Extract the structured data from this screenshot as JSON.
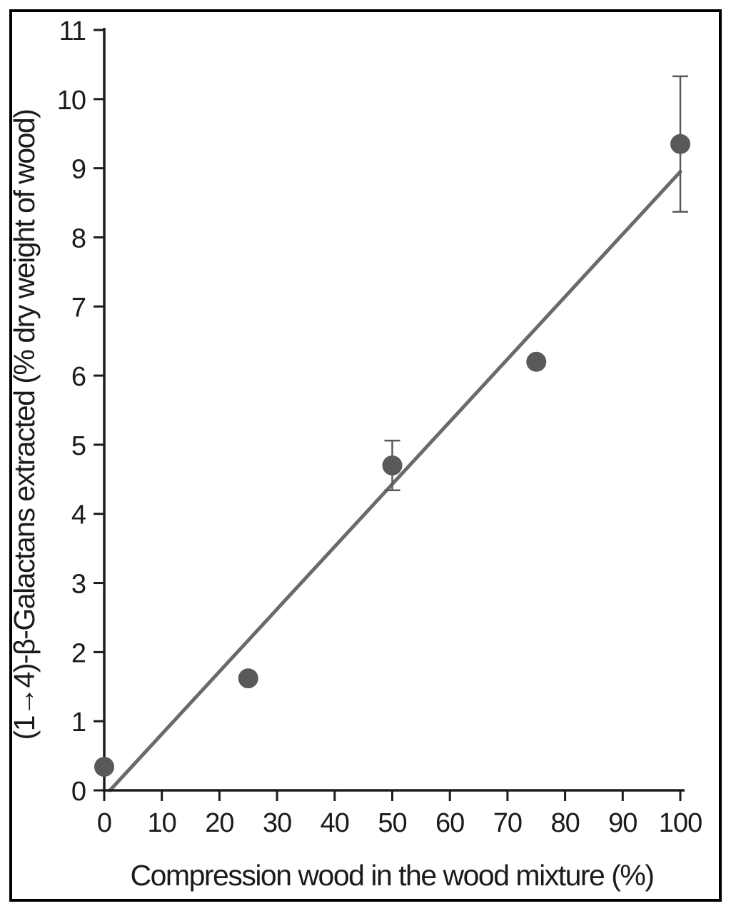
{
  "figure": {
    "background_color": "#ffffff",
    "border_color": "#000000",
    "axis_color": "#1b1b1b",
    "marker_color": "#595959",
    "trendline_color": "#6a6a6a",
    "errorbar_color": "#595959"
  },
  "chart_data": {
    "type": "scatter",
    "title": "",
    "xlabel": "Compression wood in the wood mixture (%)",
    "ylabel": "(1→4)-β-Galactans extracted (% dry weight of wood)",
    "xlim": [
      0,
      100
    ],
    "ylim": [
      0,
      11
    ],
    "x_ticks": [
      0,
      10,
      20,
      30,
      40,
      50,
      60,
      70,
      80,
      90,
      100
    ],
    "y_ticks": [
      0,
      1,
      2,
      3,
      4,
      5,
      6,
      7,
      8,
      9,
      10,
      11
    ],
    "grid": false,
    "legend": null,
    "series": [
      {
        "name": "galactans-data-points",
        "type": "scatter",
        "points": [
          {
            "x": 0,
            "y": 0.34,
            "yerr": 0
          },
          {
            "x": 25,
            "y": 1.62,
            "yerr": 0
          },
          {
            "x": 50,
            "y": 4.7,
            "yerr": 0.36
          },
          {
            "x": 75,
            "y": 6.2,
            "yerr": 0
          },
          {
            "x": 100,
            "y": 9.35,
            "yerr": 0.98
          }
        ]
      },
      {
        "name": "linear-trendline",
        "type": "line",
        "points": [
          {
            "x": 1.0,
            "y": 0
          },
          {
            "x": 100,
            "y": 8.95
          }
        ]
      }
    ]
  }
}
